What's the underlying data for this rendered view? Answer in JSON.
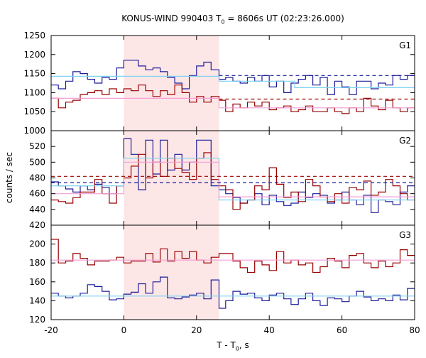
{
  "chart_data": {
    "type": "line",
    "title": {
      "prefix": "KONUS-WIND 990403 T",
      "sub": "0",
      "suffix": " = 8606s UT (02:23:26.000)"
    },
    "xlabel": {
      "prefix": "T - T",
      "sub": "0",
      "suffix": ", s"
    },
    "ylabel": "counts / sec",
    "xlim": [
      -20,
      80
    ],
    "x_ticks": [
      "-20",
      "0",
      "20",
      "40",
      "60",
      "80"
    ],
    "highlight_interval": [
      0,
      26.2
    ],
    "colors": {
      "data_dark_red": "#990000",
      "data_dark_blue": "#1c1c99",
      "fit_pink": "#f59ed6",
      "fit_cyan": "#7fd3f2",
      "interval_fill": "#fde6e6"
    },
    "panels": [
      {
        "label": "G1",
        "ylim": [
          1000,
          1250
        ],
        "y_ticks": [
          "1000",
          "1050",
          "1100",
          "1150",
          "1200",
          "1250"
        ],
        "bin_edges": [
          -20,
          -18,
          -16,
          -14,
          -12,
          -10,
          -8,
          -6,
          -4,
          -2,
          0,
          2,
          4,
          6,
          8,
          10,
          12,
          14,
          16,
          18,
          20,
          22,
          24,
          26.2,
          28,
          30,
          32,
          34,
          36,
          38,
          40,
          42,
          44,
          46,
          48,
          50,
          52,
          54,
          56,
          58,
          60,
          62,
          64,
          66,
          68,
          70,
          72,
          74,
          76,
          78,
          80
        ],
        "series": [
          {
            "color": "data_dark_blue",
            "values": [
              1120,
              1110,
              1130,
              1155,
              1150,
              1135,
              1125,
              1140,
              1135,
              1165,
              1185,
              1185,
              1170,
              1160,
              1165,
              1155,
              1140,
              1125,
              1110,
              1145,
              1170,
              1180,
              1160,
              1135,
              1140,
              1130,
              1125,
              1140,
              1130,
              1145,
              1115,
              1130,
              1100,
              1125,
              1135,
              1145,
              1120,
              1140,
              1095,
              1130,
              1115,
              1095,
              1130,
              1130,
              1110,
              1125,
              1120,
              1145,
              1135,
              1145
            ]
          },
          {
            "color": "data_dark_red",
            "values": [
              1085,
              1060,
              1075,
              1080,
              1095,
              1100,
              1105,
              1095,
              1110,
              1100,
              1110,
              1105,
              1120,
              1105,
              1090,
              1105,
              1095,
              1120,
              1100,
              1075,
              1090,
              1075,
              1090,
              1080,
              1050,
              1070,
              1060,
              1075,
              1065,
              1075,
              1055,
              1060,
              1065,
              1050,
              1055,
              1065,
              1050,
              1050,
              1060,
              1050,
              1045,
              1060,
              1050,
              1085,
              1065,
              1055,
              1080,
              1060,
              1050,
              1060
            ]
          },
          {
            "color": "fit_cyan",
            "step": [
              [
                -20,
                1143
              ],
              [
                26.2,
                1143
              ],
              [
                26.2,
                1130
              ],
              [
                47,
                1130
              ],
              [
                47,
                1113
              ],
              [
                80,
                1113
              ]
            ]
          },
          {
            "color": "fit_pink",
            "step": [
              [
                -20,
                1085
              ],
              [
                26.2,
                1085
              ],
              [
                26.2,
                1060
              ],
              [
                80,
                1060
              ]
            ]
          },
          {
            "color": "data_dark_blue",
            "dashed": true,
            "line": [
              [
                26.2,
                1145
              ],
              [
                80,
                1145
              ]
            ]
          },
          {
            "color": "data_dark_red",
            "dashed": true,
            "line": [
              [
                26.2,
                1083
              ],
              [
                80,
                1083
              ]
            ]
          }
        ]
      },
      {
        "label": "G2",
        "ylim": [
          420,
          540
        ],
        "y_ticks": [
          "420",
          "440",
          "460",
          "480",
          "500",
          "520"
        ],
        "bin_edges": [
          -20,
          -18,
          -16,
          -14,
          -12,
          -10,
          -8,
          -6,
          -4,
          -2,
          0,
          2,
          4,
          6,
          8,
          10,
          12,
          14,
          16,
          18,
          20,
          22,
          24,
          26.2,
          28,
          30,
          32,
          34,
          36,
          38,
          40,
          42,
          44,
          46,
          48,
          50,
          52,
          54,
          56,
          58,
          60,
          62,
          64,
          66,
          68,
          70,
          72,
          74,
          76,
          78,
          80
        ],
        "series": [
          {
            "color": "data_dark_blue",
            "values": [
              475,
              470,
              466,
              462,
              470,
              465,
              472,
              468,
              460,
              470,
              530,
              510,
              465,
              528,
              485,
              528,
              490,
              510,
              490,
              500,
              528,
              528,
              470,
              465,
              460,
              455,
              448,
              452,
              460,
              446,
              458,
              450,
              445,
              448,
              462,
              455,
              460,
              458,
              448,
              452,
              462,
              452,
              446,
              458,
              436,
              452,
              450,
              446,
              462,
              470
            ]
          },
          {
            "color": "data_dark_red",
            "values": [
              452,
              450,
              448,
              455,
              462,
              462,
              478,
              460,
              448,
              470,
              480,
              495,
              510,
              480,
              500,
              482,
              505,
              492,
              487,
              478,
              505,
              512,
              478,
              470,
              465,
              440,
              448,
              452,
              470,
              465,
              493,
              472,
              455,
              462,
              450,
              478,
              470,
              456,
              450,
              460,
              448,
              468,
              465,
              476,
              458,
              462,
              478,
              470,
              460,
              452
            ]
          },
          {
            "color": "fit_cyan",
            "step": [
              [
                -20,
                470
              ],
              [
                0,
                470
              ],
              [
                0,
                505
              ],
              [
                26.2,
                505
              ],
              [
                26.2,
                452
              ],
              [
                80,
                452
              ]
            ]
          },
          {
            "color": "fit_pink",
            "step": [
              [
                -20,
                460
              ],
              [
                0,
                460
              ],
              [
                0,
                500
              ],
              [
                26.2,
                500
              ],
              [
                26.2,
                456
              ],
              [
                80,
                456
              ]
            ]
          },
          {
            "color": "data_dark_blue",
            "dashed": true,
            "line": [
              [
                -20,
                474
              ],
              [
                80,
                474
              ]
            ]
          },
          {
            "color": "data_dark_red",
            "dashed": true,
            "line": [
              [
                -20,
                482
              ],
              [
                80,
                482
              ]
            ]
          }
        ]
      },
      {
        "label": "G3",
        "ylim": [
          120,
          220
        ],
        "y_ticks": [
          "120",
          "140",
          "160",
          "180",
          "200"
        ],
        "bin_edges": [
          -20,
          -18,
          -16,
          -14,
          -12,
          -10,
          -8,
          -6,
          -4,
          -2,
          0,
          2,
          4,
          6,
          8,
          10,
          12,
          14,
          16,
          18,
          20,
          22,
          24,
          26.2,
          28,
          30,
          32,
          34,
          36,
          38,
          40,
          42,
          44,
          46,
          48,
          50,
          52,
          54,
          56,
          58,
          60,
          62,
          64,
          66,
          68,
          70,
          72,
          74,
          76,
          78,
          80
        ],
        "series": [
          {
            "color": "data_dark_blue",
            "values": [
              148,
              145,
              143,
              145,
              148,
              157,
              155,
              150,
              141,
              142,
              147,
              149,
              158,
              148,
              160,
              165,
              143,
              142,
              144,
              146,
              148,
              142,
              162,
              132,
              140,
              150,
              147,
              148,
              143,
              140,
              146,
              148,
              142,
              136,
              142,
              148,
              140,
              135,
              143,
              142,
              139,
              145,
              150,
              144,
              140,
              142,
              140,
              146,
              141,
              153
            ]
          },
          {
            "color": "data_dark_red",
            "values": [
              205,
              180,
              182,
              190,
              185,
              178,
              182,
              182,
              183,
              186,
              180,
              182,
              182,
              190,
              181,
              195,
              182,
              192,
              185,
              192,
              183,
              180,
              186,
              190,
              190,
              182,
              175,
              170,
              182,
              178,
              172,
              192,
              180,
              183,
              178,
              180,
              170,
              176,
              185,
              182,
              175,
              188,
              190,
              180,
              175,
              182,
              176,
              180,
              194,
              188
            ]
          },
          {
            "color": "fit_cyan",
            "step": [
              [
                -20,
                145
              ],
              [
                80,
                145
              ]
            ]
          },
          {
            "color": "fit_pink",
            "step": [
              [
                -20,
                183
              ],
              [
                80,
                183
              ]
            ]
          }
        ]
      }
    ]
  }
}
